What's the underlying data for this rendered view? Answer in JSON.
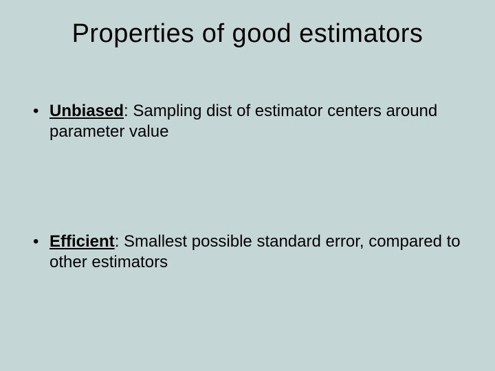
{
  "slide": {
    "title": "Properties of good estimators",
    "background_color": "#c4d6d6",
    "text_color": "#000000",
    "title_fontsize": 38,
    "body_fontsize": 24,
    "bullets": [
      {
        "term": "Unbiased",
        "definition": ": Sampling dist of estimator centers around parameter value"
      },
      {
        "term": "Efficient",
        "definition": ": Smallest possible standard error, compared to other estimators"
      }
    ]
  }
}
